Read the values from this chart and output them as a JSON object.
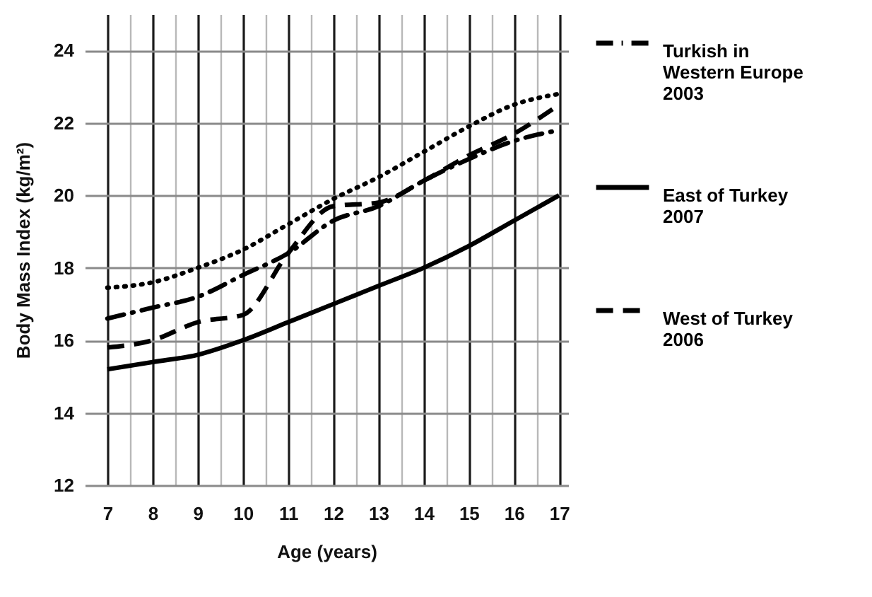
{
  "chart_data": {
    "type": "line",
    "xlabel": "Age (years)",
    "ylabel": "Body Mass Index (kg/m²)",
    "x": [
      7,
      8,
      9,
      10,
      11,
      12,
      13,
      14,
      15,
      16,
      17
    ],
    "xlim": [
      6.5,
      17.2
    ],
    "xticks": [
      7,
      {
        "value": 7.5,
        "label": null
      },
      8,
      {
        "value": 8.5,
        "label": null
      },
      9,
      {
        "value": 9.5,
        "label": null
      },
      10,
      {
        "value": 10.5,
        "label": null
      },
      11,
      {
        "value": 11.5,
        "label": null
      },
      12,
      {
        "value": 12.5,
        "label": null
      },
      13,
      {
        "value": 13.5,
        "label": null
      },
      14,
      {
        "value": 14.5,
        "label": null
      },
      15,
      {
        "value": 15.5,
        "label": null
      },
      16,
      {
        "value": 16.5,
        "label": null
      },
      17
    ],
    "ylim": [
      12,
      25
    ],
    "yticks": [
      12,
      14,
      16,
      18,
      20,
      22,
      24
    ],
    "grid": true,
    "legend": "right",
    "series": [
      {
        "color": "#000000",
        "line_style": "dotted",
        "values": [
          17.45,
          17.6,
          18.0,
          18.5,
          19.2,
          19.9,
          20.5,
          21.2,
          21.9,
          22.5,
          22.8
        ]
      },
      {
        "name": "Turkish in Western Europe 2003",
        "color": "#000000",
        "line_style": "dashdot",
        "values": [
          16.6,
          16.9,
          17.2,
          17.8,
          18.4,
          19.3,
          19.7,
          20.4,
          21.0,
          21.5,
          21.8
        ]
      },
      {
        "name": "East of Turkey 2007",
        "color": "#000000",
        "line_style": "solid",
        "values": [
          15.2,
          15.4,
          15.6,
          16.0,
          16.5,
          17.0,
          17.5,
          18.0,
          18.6,
          19.3,
          20.0
        ]
      },
      {
        "name": "West of Turkey 2006",
        "color": "#000000",
        "line_style": "dashed",
        "values": [
          15.8,
          16.0,
          16.5,
          16.7,
          18.4,
          19.7,
          19.8,
          20.4,
          21.1,
          21.7,
          22.5
        ]
      }
    ]
  }
}
